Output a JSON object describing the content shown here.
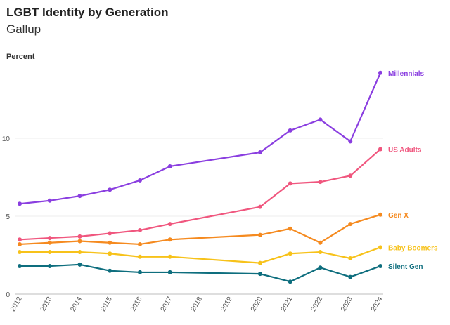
{
  "title": "LGBT Identity by Generation",
  "subtitle": "Gallup",
  "chart_data": {
    "type": "line",
    "ylabel": "Percent",
    "xlabel": "",
    "ylim": [
      0,
      15
    ],
    "grid": "horizontal",
    "x": [
      2012,
      2013,
      2014,
      2015,
      2016,
      2017,
      2018,
      2019,
      2020,
      2021,
      2022,
      2023,
      2024
    ],
    "x_tick_labels": [
      "2012",
      "2013",
      "2014",
      "2015",
      "2016",
      "2017",
      "2018",
      "2019",
      "2020",
      "2021",
      "2022",
      "2023",
      "2024"
    ],
    "y_ticks": [
      0,
      5,
      10
    ],
    "y_tick_labels": [
      "0",
      "5",
      "10"
    ],
    "series": [
      {
        "name": "Millennials",
        "color": "#8a3ee0",
        "x": [
          2012,
          2013,
          2014,
          2015,
          2016,
          2017,
          2020,
          2021,
          2022,
          2023,
          2024
        ],
        "values": [
          5.8,
          6.0,
          6.3,
          6.7,
          7.3,
          8.2,
          9.1,
          10.5,
          11.2,
          9.8,
          14.2
        ]
      },
      {
        "name": "US Adults",
        "color": "#f0567e",
        "x": [
          2012,
          2013,
          2014,
          2015,
          2016,
          2017,
          2020,
          2021,
          2022,
          2023,
          2024
        ],
        "values": [
          3.5,
          3.6,
          3.7,
          3.9,
          4.1,
          4.5,
          5.6,
          7.1,
          7.2,
          7.6,
          9.3
        ]
      },
      {
        "name": "Gen X",
        "color": "#f58a1f",
        "x": [
          2012,
          2013,
          2014,
          2015,
          2016,
          2017,
          2020,
          2021,
          2022,
          2023,
          2024
        ],
        "values": [
          3.2,
          3.3,
          3.4,
          3.3,
          3.2,
          3.5,
          3.8,
          4.2,
          3.3,
          4.5,
          5.1
        ]
      },
      {
        "name": "Baby Boomers",
        "color": "#f7c21a",
        "x": [
          2012,
          2013,
          2014,
          2015,
          2016,
          2017,
          2020,
          2021,
          2022,
          2023,
          2024
        ],
        "values": [
          2.7,
          2.7,
          2.7,
          2.6,
          2.4,
          2.4,
          2.0,
          2.6,
          2.7,
          2.3,
          3.0
        ]
      },
      {
        "name": "Silent Gen",
        "color": "#0e6e7e",
        "x": [
          2012,
          2013,
          2014,
          2015,
          2016,
          2017,
          2020,
          2021,
          2022,
          2023,
          2024
        ],
        "values": [
          1.8,
          1.8,
          1.9,
          1.5,
          1.4,
          1.4,
          1.3,
          0.8,
          1.7,
          1.1,
          1.8
        ]
      }
    ]
  }
}
